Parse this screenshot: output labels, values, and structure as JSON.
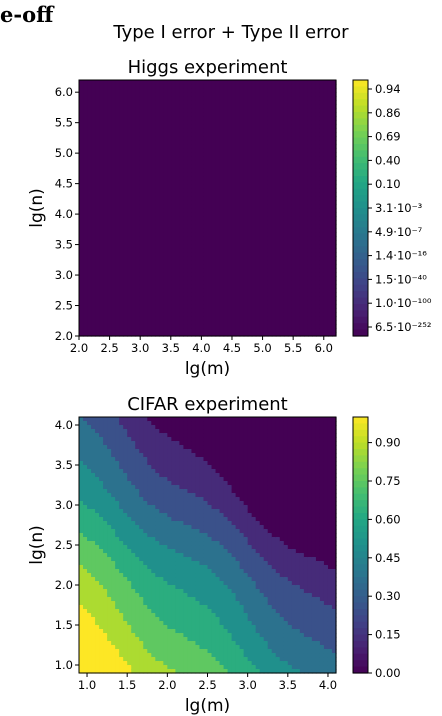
{
  "heading_fragment": "e-off",
  "suptitle": "Type I error + Type II error",
  "chart_data": [
    {
      "type": "heatmap",
      "subtype": "filled-contour",
      "title": "Higgs experiment",
      "xlabel": "lg(m)",
      "ylabel": "lg(n)",
      "xlim": [
        2.0,
        6.2
      ],
      "ylim": [
        2.0,
        6.2
      ],
      "xticks": [
        "2.0",
        "2.5",
        "3.0",
        "3.5",
        "4.0",
        "4.5",
        "5.0",
        "5.5",
        "6.0"
      ],
      "yticks": [
        "2.0",
        "2.5",
        "3.0",
        "3.5",
        "4.0",
        "4.5",
        "5.0",
        "5.5",
        "6.0"
      ],
      "colorbar_scale": "log",
      "colorbar_ticks": [
        "0.94",
        "0.86",
        "0.69",
        "0.40",
        "0.10",
        "3.1·10⁻³",
        "4.9·10⁻⁷",
        "1.4·10⁻¹⁶",
        "1.5·10⁻⁴⁰",
        "1.0·10⁻¹⁰⁰",
        "6.5·10⁻²⁵²"
      ],
      "colormap": "viridis",
      "level_boundaries": [
        0.25,
        0.4,
        0.55,
        0.7,
        0.85,
        1.0,
        1.15,
        1.3
      ],
      "grid": false
    },
    {
      "type": "heatmap",
      "subtype": "filled-contour",
      "title": "CIFAR experiment",
      "xlabel": "lg(m)",
      "ylabel": "lg(n)",
      "xlim": [
        0.9,
        4.1
      ],
      "ylim": [
        0.9,
        4.1
      ],
      "xticks": [
        "1.0",
        "1.5",
        "2.0",
        "2.5",
        "3.0",
        "3.5",
        "4.0"
      ],
      "yticks": [
        "1.0",
        "1.5",
        "2.0",
        "2.5",
        "3.0",
        "3.5",
        "4.0"
      ],
      "colorbar_range": [
        0.0,
        1.0
      ],
      "colorbar_ticks": [
        "0.00",
        "0.15",
        "0.30",
        "0.45",
        "0.60",
        "0.75",
        "0.90"
      ],
      "colormap": "viridis",
      "level_boundaries": [
        2.0,
        2.3,
        2.6,
        2.9,
        3.2,
        3.5,
        3.8,
        4.1
      ],
      "grid": false
    }
  ]
}
